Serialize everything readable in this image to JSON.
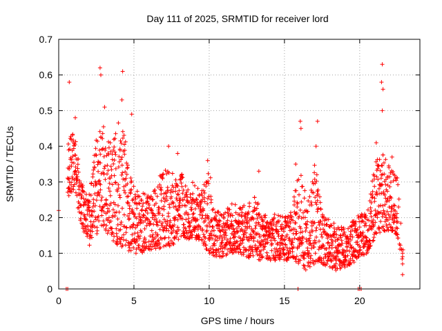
{
  "chart_data": {
    "type": "scatter",
    "title": "Day 111 of 2025, SRMTID for receiver lord",
    "xlabel": "GPS time / hours",
    "ylabel": "SRMTID / TECUs",
    "xlim": [
      0,
      24
    ],
    "ylim": [
      0,
      0.7
    ],
    "xticks": [
      0,
      5,
      10,
      15,
      20
    ],
    "xtick_labels": [
      "0",
      "5",
      "10",
      "15",
      "20"
    ],
    "yticks": [
      0,
      0.1,
      0.2,
      0.3,
      0.4,
      0.5,
      0.6,
      0.7
    ],
    "ytick_labels": [
      "0",
      "0.1",
      "0.2",
      "0.3",
      "0.4",
      "0.5",
      "0.6",
      "0.7"
    ],
    "grid": true,
    "marker": "plus",
    "series_color": "#ff0000",
    "series": [
      {
        "name": "SRMTID",
        "envelope": {
          "hours": [
            0.6,
            1.0,
            1.5,
            2.0,
            2.5,
            3.0,
            3.5,
            4.0,
            4.5,
            5.0,
            5.5,
            6.0,
            6.5,
            7.0,
            7.5,
            8.0,
            8.5,
            9.0,
            9.5,
            10.0,
            10.5,
            11.0,
            11.5,
            12.0,
            12.5,
            13.0,
            13.5,
            14.0,
            14.5,
            15.0,
            15.5,
            16.0,
            16.5,
            17.0,
            17.5,
            18.0,
            18.5,
            19.0,
            19.5,
            20.0,
            20.5,
            21.0,
            21.5,
            22.0,
            22.5,
            22.9
          ],
          "low": [
            0.25,
            0.28,
            0.18,
            0.12,
            0.15,
            0.17,
            0.14,
            0.12,
            0.11,
            0.1,
            0.1,
            0.11,
            0.11,
            0.12,
            0.12,
            0.14,
            0.14,
            0.14,
            0.13,
            0.1,
            0.09,
            0.09,
            0.1,
            0.1,
            0.09,
            0.08,
            0.08,
            0.08,
            0.08,
            0.08,
            0.08,
            0.07,
            0.05,
            0.07,
            0.07,
            0.06,
            0.05,
            0.06,
            0.07,
            0.09,
            0.1,
            0.14,
            0.16,
            0.16,
            0.15,
            0.04
          ],
          "high": [
            0.42,
            0.47,
            0.3,
            0.26,
            0.44,
            0.47,
            0.4,
            0.48,
            0.42,
            0.3,
            0.27,
            0.27,
            0.28,
            0.36,
            0.34,
            0.35,
            0.3,
            0.3,
            0.28,
            0.33,
            0.22,
            0.22,
            0.24,
            0.24,
            0.23,
            0.26,
            0.22,
            0.21,
            0.21,
            0.2,
            0.22,
            0.36,
            0.24,
            0.36,
            0.24,
            0.19,
            0.18,
            0.17,
            0.19,
            0.21,
            0.22,
            0.35,
            0.4,
            0.34,
            0.32,
            0.1
          ]
        },
        "spikes": [
          {
            "hour": 0.7,
            "value": 0.58
          },
          {
            "hour": 1.1,
            "value": 0.48
          },
          {
            "hour": 2.75,
            "value": 0.62
          },
          {
            "hour": 2.8,
            "value": 0.6
          },
          {
            "hour": 3.05,
            "value": 0.51
          },
          {
            "hour": 4.25,
            "value": 0.61
          },
          {
            "hour": 4.2,
            "value": 0.53
          },
          {
            "hour": 4.85,
            "value": 0.49
          },
          {
            "hour": 7.3,
            "value": 0.4
          },
          {
            "hour": 7.9,
            "value": 0.38
          },
          {
            "hour": 9.9,
            "value": 0.36
          },
          {
            "hour": 13.3,
            "value": 0.33
          },
          {
            "hour": 15.75,
            "value": 0.35
          },
          {
            "hour": 16.05,
            "value": 0.47
          },
          {
            "hour": 16.1,
            "value": 0.45
          },
          {
            "hour": 17.2,
            "value": 0.47
          },
          {
            "hour": 17.1,
            "value": 0.4
          },
          {
            "hour": 21.5,
            "value": 0.63
          },
          {
            "hour": 21.45,
            "value": 0.58
          },
          {
            "hour": 21.55,
            "value": 0.56
          },
          {
            "hour": 21.5,
            "value": 0.5
          },
          {
            "hour": 21.1,
            "value": 0.41
          },
          {
            "hour": 22.15,
            "value": 0.37
          },
          {
            "hour": 22.85,
            "value": 0.1
          },
          {
            "hour": 22.85,
            "value": 0.07
          },
          {
            "hour": 22.85,
            "value": 0.04
          }
        ],
        "isolated_points": [
          {
            "hour": 0.0,
            "value": 0.22
          },
          {
            "hour": 0.5,
            "value": 0.0
          },
          {
            "hour": 0.6,
            "value": 0.0
          },
          {
            "hour": 15.9,
            "value": 0.0
          },
          {
            "hour": 19.9,
            "value": 0.0
          },
          {
            "hour": 20.0,
            "value": 0.0
          },
          {
            "hour": 20.1,
            "value": 0.0
          }
        ]
      }
    ]
  }
}
